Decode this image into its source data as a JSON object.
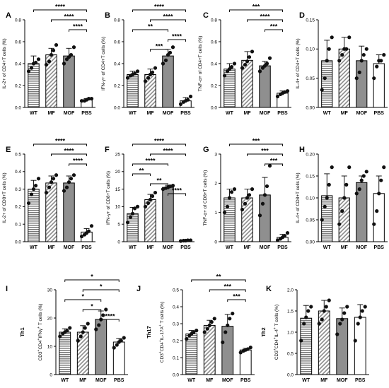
{
  "chart_data": [
    {
      "type": "bar",
      "panel": "A",
      "ylabel": "IL-2+ of CD4+T cells (%)",
      "categories": [
        "WT",
        "MF",
        "MOF",
        "PBS"
      ],
      "ylim": [
        0,
        0.8
      ],
      "yticks": [
        "0.0",
        "0.2",
        "0.4",
        "0.6",
        "0.8"
      ],
      "values": [
        0.4,
        0.48,
        0.47,
        0.07
      ],
      "errors": [
        0.07,
        0.06,
        0.07,
        0.01
      ],
      "points": [
        [
          0.33,
          0.36,
          0.4,
          0.41,
          0.44
        ],
        [
          0.39,
          0.42,
          0.48,
          0.52,
          0.57
        ],
        [
          0.4,
          0.44,
          0.46,
          0.48,
          0.55
        ],
        [
          0.06,
          0.06,
          0.07,
          0.08,
          0.08
        ]
      ],
      "significance": [
        {
          "pair": [
            "WT",
            "PBS"
          ],
          "label": "****"
        },
        {
          "pair": [
            "MF",
            "PBS"
          ],
          "label": "****"
        },
        {
          "pair": [
            "MOF",
            "PBS"
          ],
          "label": "****"
        }
      ]
    },
    {
      "type": "bar",
      "panel": "B",
      "ylabel": "IFN-γ+ of CD4+T cells (%)",
      "categories": [
        "WT",
        "MF",
        "MOF",
        "PBS"
      ],
      "ylim": [
        0,
        0.8
      ],
      "yticks": [
        "0.0",
        "0.2",
        "0.4",
        "0.6",
        "0.8"
      ],
      "values": [
        0.3,
        0.3,
        0.47,
        0.06
      ],
      "errors": [
        0.03,
        0.05,
        0.06,
        0.03
      ],
      "points": [
        [
          0.27,
          0.29,
          0.3,
          0.31,
          0.33
        ],
        [
          0.24,
          0.27,
          0.3,
          0.32,
          0.36
        ],
        [
          0.4,
          0.43,
          0.48,
          0.5,
          0.55
        ],
        [
          0.03,
          0.05,
          0.06,
          0.07,
          0.1
        ]
      ],
      "significance": [
        {
          "pair": [
            "WT",
            "PBS"
          ],
          "label": "****"
        },
        {
          "pair": [
            "MF",
            "PBS"
          ],
          "label": "****"
        },
        {
          "pair": [
            "WT",
            "MOF"
          ],
          "label": "**"
        },
        {
          "pair": [
            "MOF",
            "PBS"
          ],
          "label": "****"
        },
        {
          "pair": [
            "MF",
            "MOF"
          ],
          "label": "***"
        }
      ]
    },
    {
      "type": "bar",
      "panel": "C",
      "ylabel": "TNF-α+ of CD4+T cells (%)",
      "categories": [
        "WT",
        "MF",
        "MOF",
        "PBS"
      ],
      "ylim": [
        0,
        0.8
      ],
      "yticks": [
        "0.0",
        "0.2",
        "0.4",
        "0.6",
        "0.8"
      ],
      "values": [
        0.35,
        0.43,
        0.38,
        0.13
      ],
      "errors": [
        0.05,
        0.08,
        0.04,
        0.02
      ],
      "points": [
        [
          0.29,
          0.33,
          0.35,
          0.37,
          0.4
        ],
        [
          0.36,
          0.39,
          0.42,
          0.46,
          0.51
        ],
        [
          0.33,
          0.36,
          0.38,
          0.4,
          0.45
        ],
        [
          0.1,
          0.12,
          0.13,
          0.14,
          0.15
        ]
      ],
      "significance": [
        {
          "pair": [
            "WT",
            "PBS"
          ],
          "label": "***"
        },
        {
          "pair": [
            "MF",
            "PBS"
          ],
          "label": "****"
        },
        {
          "pair": [
            "MOF",
            "PBS"
          ],
          "label": "***"
        }
      ]
    },
    {
      "type": "bar",
      "panel": "D",
      "ylabel": "IL-4+ of CD4+T cells (%)",
      "categories": [
        "WT",
        "MF",
        "MOF",
        "PBS"
      ],
      "ylim": [
        0,
        0.15
      ],
      "yticks": [
        "0.00",
        "0.05",
        "0.10",
        "0.15"
      ],
      "values": [
        0.08,
        0.1,
        0.08,
        0.075
      ],
      "errors": [
        0.035,
        0.02,
        0.025,
        0.015
      ],
      "points": [
        [
          0.03,
          0.05,
          0.08,
          0.1,
          0.12
        ],
        [
          0.08,
          0.09,
          0.1,
          0.1,
          0.12
        ],
        [
          0.05,
          0.06,
          0.08,
          0.09,
          0.1
        ],
        [
          0.05,
          0.07,
          0.08,
          0.08,
          0.09
        ]
      ],
      "significance": []
    },
    {
      "type": "bar",
      "panel": "E",
      "ylabel": "IL-2+ of CD8+T cells (%)",
      "categories": [
        "WT",
        "MF",
        "MOF",
        "PBS"
      ],
      "ylim": [
        0,
        0.5
      ],
      "yticks": [
        "0.0",
        "0.1",
        "0.2",
        "0.3",
        "0.4",
        "0.5"
      ],
      "values": [
        0.3,
        0.335,
        0.335,
        0.055
      ],
      "errors": [
        0.05,
        0.04,
        0.04,
        0.02
      ],
      "points": [
        [
          0.22,
          0.27,
          0.3,
          0.32,
          0.36
        ],
        [
          0.28,
          0.31,
          0.34,
          0.36,
          0.38
        ],
        [
          0.29,
          0.31,
          0.34,
          0.36,
          0.38
        ],
        [
          0.03,
          0.04,
          0.05,
          0.06,
          0.09
        ]
      ],
      "significance": [
        {
          "pair": [
            "WT",
            "PBS"
          ],
          "label": "****"
        },
        {
          "pair": [
            "MF",
            "PBS"
          ],
          "label": "****"
        },
        {
          "pair": [
            "MOF",
            "PBS"
          ],
          "label": "****"
        }
      ]
    },
    {
      "type": "bar",
      "panel": "F",
      "ylabel": "IFN-γ+ of CD8+T cells (%)",
      "categories": [
        "WT",
        "MF",
        "MOF",
        "PBS"
      ],
      "ylim": [
        0,
        25
      ],
      "yticks": [
        "0",
        "5",
        "10",
        "15",
        "20",
        "25"
      ],
      "values": [
        8,
        12,
        15.5,
        0.3
      ],
      "errors": [
        1.8,
        1.5,
        0.6,
        0.1
      ],
      "points": [
        [
          5.5,
          7,
          8,
          9.5,
          10
        ],
        [
          10,
          11,
          12,
          13,
          14
        ],
        [
          15,
          15.3,
          15.5,
          15.8,
          16
        ],
        [
          0.2,
          0.3,
          0.3,
          0.4,
          0.4
        ]
      ],
      "significance": [
        {
          "pair": [
            "WT",
            "PBS"
          ],
          "label": "****"
        },
        {
          "pair": [
            "MF",
            "PBS"
          ],
          "label": "****"
        },
        {
          "pair": [
            "WT",
            "MOF"
          ],
          "label": "****"
        },
        {
          "pair": [
            "WT",
            "MF"
          ],
          "label": "**"
        },
        {
          "pair": [
            "MF",
            "MOF"
          ],
          "label": "**"
        },
        {
          "pair": [
            "MOF",
            "PBS"
          ],
          "label": "****"
        }
      ]
    },
    {
      "type": "bar",
      "panel": "G",
      "ylabel": "TNF-α+ of CD8+T cells (%)",
      "categories": [
        "WT",
        "MF",
        "MOF",
        "PBS"
      ],
      "ylim": [
        0,
        3
      ],
      "yticks": [
        "0",
        "1",
        "2",
        "3"
      ],
      "values": [
        1.5,
        1.5,
        1.6,
        0.15
      ],
      "errors": [
        0.3,
        0.3,
        0.6,
        0.1
      ],
      "points": [
        [
          1.0,
          1.2,
          1.5,
          1.7,
          1.8
        ],
        [
          1.1,
          1.3,
          1.5,
          1.6,
          1.8
        ],
        [
          0.9,
          1.3,
          1.6,
          1.9,
          2.6
        ],
        [
          0.05,
          0.1,
          0.15,
          0.2,
          0.3
        ]
      ],
      "significance": [
        {
          "pair": [
            "WT",
            "PBS"
          ],
          "label": "***"
        },
        {
          "pair": [
            "MF",
            "PBS"
          ],
          "label": "***"
        },
        {
          "pair": [
            "MOF",
            "PBS"
          ],
          "label": "***"
        }
      ]
    },
    {
      "type": "bar",
      "panel": "H",
      "ylabel": "IL-4+ of CD8+T cells (%)",
      "categories": [
        "WT",
        "MF",
        "MOF",
        "PBS"
      ],
      "ylim": [
        0,
        0.2
      ],
      "yticks": [
        "0.00",
        "0.05",
        "0.10",
        "0.15",
        "0.20"
      ],
      "values": [
        0.105,
        0.1,
        0.135,
        0.11
      ],
      "errors": [
        0.05,
        0.05,
        0.015,
        0.04
      ],
      "points": [
        [
          0.05,
          0.08,
          0.1,
          0.13,
          0.17
        ],
        [
          0.04,
          0.07,
          0.1,
          0.13,
          0.17
        ],
        [
          0.11,
          0.12,
          0.14,
          0.15,
          0.16
        ],
        [
          0.04,
          0.07,
          0.11,
          0.14,
          0.17
        ]
      ],
      "significance": []
    },
    {
      "type": "bar",
      "panel": "I",
      "ylabel": "CD3+CD4+IFNγ+ T cells (%)",
      "sidelabel": "Th1",
      "categories": [
        "WT",
        "MF",
        "MOF",
        "PBS"
      ],
      "ylim": [
        0,
        30
      ],
      "yticks": [
        "0",
        "10",
        "20",
        "30"
      ],
      "values": [
        15,
        15,
        19.5,
        11.5
      ],
      "errors": [
        1.2,
        2.3,
        3,
        1.3
      ],
      "points": [
        [
          13.5,
          14.5,
          15,
          15.5,
          16.5
        ],
        [
          12,
          13.5,
          15,
          16.5,
          18
        ],
        [
          16,
          17.5,
          19.5,
          21,
          23
        ],
        [
          9.5,
          10.5,
          11.5,
          12,
          13
        ]
      ],
      "significance": [
        {
          "pair": [
            "WT",
            "PBS"
          ],
          "label": "*"
        },
        {
          "pair": [
            "MF",
            "PBS"
          ],
          "label": "*"
        },
        {
          "pair": [
            "WT",
            "MOF"
          ],
          "label": "*"
        },
        {
          "pair": [
            "MF",
            "MOF"
          ],
          "label": "*"
        },
        {
          "pair": [
            "MOF",
            "PBS"
          ],
          "label": "****"
        }
      ]
    },
    {
      "type": "bar",
      "panel": "J",
      "ylabel": "CD3+CD4+IL-17A+ T cells (%)",
      "sidelabel": "Th17",
      "categories": [
        "WT",
        "MF",
        "MOF",
        "PBS"
      ],
      "ylim": [
        0,
        0.5
      ],
      "yticks": [
        "0.0",
        "0.1",
        "0.2",
        "0.3",
        "0.4",
        "0.5"
      ],
      "values": [
        0.24,
        0.29,
        0.285,
        0.145
      ],
      "errors": [
        0.02,
        0.03,
        0.07,
        0.01
      ],
      "points": [
        [
          0.21,
          0.23,
          0.24,
          0.25,
          0.26
        ],
        [
          0.25,
          0.27,
          0.29,
          0.31,
          0.33
        ],
        [
          0.19,
          0.25,
          0.29,
          0.33,
          0.36
        ],
        [
          0.13,
          0.14,
          0.145,
          0.15,
          0.16
        ]
      ],
      "significance": [
        {
          "pair": [
            "WT",
            "PBS"
          ],
          "label": "**"
        },
        {
          "pair": [
            "MF",
            "PBS"
          ],
          "label": "***"
        },
        {
          "pair": [
            "MOF",
            "PBS"
          ],
          "label": "***"
        }
      ]
    },
    {
      "type": "bar",
      "panel": "K",
      "ylabel": "CD3+CD4+IL-4+ T cells (%)",
      "sidelabel": "Th2",
      "categories": [
        "WT",
        "MF",
        "MOF",
        "PBS"
      ],
      "ylim": [
        0,
        2
      ],
      "yticks": [
        "0.0",
        "0.5",
        "1.0",
        "1.5",
        "2.0"
      ],
      "values": [
        1.33,
        1.5,
        1.32,
        1.35
      ],
      "errors": [
        0.3,
        0.25,
        0.25,
        0.3
      ],
      "points": [
        [
          0.8,
          1.2,
          1.35,
          1.5,
          1.6
        ],
        [
          1.2,
          1.3,
          1.5,
          1.6,
          1.75
        ],
        [
          0.95,
          1.2,
          1.3,
          1.45,
          1.6
        ],
        [
          0.8,
          1.2,
          1.35,
          1.5,
          1.6
        ]
      ],
      "significance": []
    }
  ]
}
